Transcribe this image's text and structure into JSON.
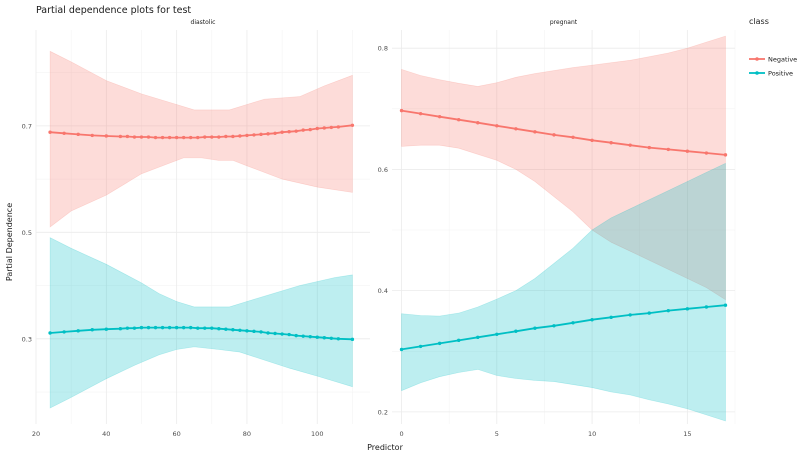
{
  "chart_data": {
    "type": "line",
    "title": "Partial dependence plots for test",
    "xlabel": "Predictor",
    "ylabel": "Partial Dependence",
    "legend": {
      "title": "class",
      "position": "right",
      "entries": [
        {
          "name": "Negative",
          "color": "#F8766D"
        },
        {
          "name": "Positive",
          "color": "#00BFC4"
        }
      ]
    },
    "panels": [
      {
        "strip": "diastolic",
        "xlim": [
          20,
          115
        ],
        "ylim": [
          0.14,
          0.88
        ],
        "xticks": [
          20,
          40,
          60,
          80,
          100
        ],
        "yticks": [
          0.3,
          0.5,
          0.7
        ],
        "ytick_labels": [
          "0.3",
          "0.5",
          "0.7"
        ],
        "series": [
          {
            "name": "Negative",
            "color": "#F8766D",
            "x": [
              24,
              28,
              32,
              36,
              40,
              44,
              46,
              48,
              50,
              52,
              54,
              56,
              58,
              60,
              62,
              64,
              66,
              68,
              70,
              72,
              74,
              76,
              78,
              80,
              82,
              84,
              86,
              88,
              90,
              92,
              94,
              96,
              98,
              100,
              102,
              104,
              106,
              110
            ],
            "y": [
              0.688,
              0.686,
              0.684,
              0.682,
              0.681,
              0.68,
              0.68,
              0.679,
              0.679,
              0.679,
              0.678,
              0.678,
              0.678,
              0.678,
              0.678,
              0.678,
              0.678,
              0.679,
              0.679,
              0.679,
              0.68,
              0.68,
              0.681,
              0.682,
              0.683,
              0.684,
              0.685,
              0.686,
              0.688,
              0.689,
              0.69,
              0.692,
              0.693,
              0.695,
              0.696,
              0.697,
              0.698,
              0.701
            ],
            "upper": [
              [
                24,
                0.84
              ],
              [
                30,
                0.82
              ],
              [
                40,
                0.785
              ],
              [
                50,
                0.76
              ],
              [
                60,
                0.74
              ],
              [
                65,
                0.73
              ],
              [
                75,
                0.73
              ],
              [
                80,
                0.74
              ],
              [
                85,
                0.75
              ],
              [
                95,
                0.755
              ],
              [
                102,
                0.775
              ],
              [
                110,
                0.795
              ]
            ],
            "lower": [
              [
                24,
                0.51
              ],
              [
                30,
                0.54
              ],
              [
                40,
                0.57
              ],
              [
                50,
                0.61
              ],
              [
                58,
                0.63
              ],
              [
                62,
                0.64
              ],
              [
                67,
                0.64
              ],
              [
                72,
                0.635
              ],
              [
                76,
                0.635
              ],
              [
                80,
                0.625
              ],
              [
                84,
                0.615
              ],
              [
                90,
                0.6
              ],
              [
                100,
                0.585
              ],
              [
                110,
                0.575
              ]
            ]
          },
          {
            "name": "Positive",
            "color": "#00BFC4",
            "x": [
              24,
              28,
              32,
              36,
              40,
              44,
              46,
              48,
              50,
              52,
              54,
              56,
              58,
              60,
              62,
              64,
              66,
              68,
              70,
              72,
              74,
              76,
              78,
              80,
              82,
              84,
              86,
              88,
              90,
              92,
              94,
              96,
              98,
              100,
              102,
              104,
              106,
              110
            ],
            "y": [
              0.311,
              0.313,
              0.315,
              0.317,
              0.318,
              0.319,
              0.32,
              0.32,
              0.321,
              0.321,
              0.321,
              0.321,
              0.321,
              0.321,
              0.321,
              0.321,
              0.32,
              0.32,
              0.32,
              0.319,
              0.318,
              0.317,
              0.316,
              0.315,
              0.314,
              0.313,
              0.311,
              0.31,
              0.309,
              0.308,
              0.306,
              0.305,
              0.304,
              0.303,
              0.302,
              0.301,
              0.3,
              0.299
            ],
            "upper": [
              [
                24,
                0.49
              ],
              [
                30,
                0.47
              ],
              [
                40,
                0.44
              ],
              [
                50,
                0.405
              ],
              [
                55,
                0.385
              ],
              [
                60,
                0.37
              ],
              [
                65,
                0.36
              ],
              [
                70,
                0.36
              ],
              [
                75,
                0.36
              ],
              [
                80,
                0.37
              ],
              [
                85,
                0.38
              ],
              [
                95,
                0.4
              ],
              [
                105,
                0.415
              ],
              [
                110,
                0.42
              ]
            ],
            "lower": [
              [
                24,
                0.17
              ],
              [
                30,
                0.19
              ],
              [
                40,
                0.225
              ],
              [
                48,
                0.25
              ],
              [
                55,
                0.27
              ],
              [
                60,
                0.28
              ],
              [
                65,
                0.285
              ],
              [
                72,
                0.28
              ],
              [
                78,
                0.275
              ],
              [
                85,
                0.26
              ],
              [
                92,
                0.245
              ],
              [
                100,
                0.23
              ],
              [
                110,
                0.21
              ]
            ]
          }
        ]
      },
      {
        "strip": "pregnant",
        "xlim": [
          -0.5,
          17.5
        ],
        "ylim": [
          0.18,
          0.83
        ],
        "xticks": [
          0,
          5,
          10,
          15
        ],
        "yticks": [
          0.2,
          0.4,
          0.6,
          0.8
        ],
        "ytick_labels": [
          "0.2",
          "0.4",
          "0.6",
          "0.8"
        ],
        "series": [
          {
            "name": "Negative",
            "color": "#F8766D",
            "x": [
              0,
              1,
              2,
              3,
              4,
              5,
              6,
              7,
              8,
              9,
              10,
              11,
              12,
              13,
              14,
              15,
              16,
              17
            ],
            "y": [
              0.697,
              0.692,
              0.687,
              0.682,
              0.677,
              0.672,
              0.667,
              0.662,
              0.657,
              0.653,
              0.648,
              0.644,
              0.64,
              0.636,
              0.633,
              0.63,
              0.627,
              0.624
            ],
            "upper": [
              [
                0,
                0.765
              ],
              [
                1,
                0.755
              ],
              [
                2,
                0.748
              ],
              [
                3,
                0.742
              ],
              [
                4,
                0.737
              ],
              [
                5,
                0.743
              ],
              [
                6,
                0.752
              ],
              [
                7,
                0.758
              ],
              [
                8,
                0.763
              ],
              [
                9,
                0.768
              ],
              [
                10,
                0.772
              ],
              [
                11,
                0.776
              ],
              [
                12,
                0.78
              ],
              [
                13,
                0.786
              ],
              [
                14,
                0.792
              ],
              [
                15,
                0.8
              ],
              [
                16,
                0.81
              ],
              [
                17,
                0.82
              ]
            ],
            "lower": [
              [
                0,
                0.638
              ],
              [
                1,
                0.64
              ],
              [
                2,
                0.64
              ],
              [
                3,
                0.635
              ],
              [
                4,
                0.625
              ],
              [
                5,
                0.615
              ],
              [
                6,
                0.6
              ],
              [
                7,
                0.58
              ],
              [
                8,
                0.555
              ],
              [
                9,
                0.53
              ],
              [
                10,
                0.5
              ],
              [
                11,
                0.48
              ],
              [
                12,
                0.465
              ],
              [
                13,
                0.45
              ],
              [
                14,
                0.435
              ],
              [
                15,
                0.42
              ],
              [
                16,
                0.405
              ],
              [
                17,
                0.385
              ]
            ]
          },
          {
            "name": "Positive",
            "color": "#00BFC4",
            "x": [
              0,
              1,
              2,
              3,
              4,
              5,
              6,
              7,
              8,
              9,
              10,
              11,
              12,
              13,
              14,
              15,
              16,
              17
            ],
            "y": [
              0.303,
              0.308,
              0.313,
              0.318,
              0.323,
              0.328,
              0.333,
              0.338,
              0.342,
              0.347,
              0.352,
              0.356,
              0.36,
              0.363,
              0.367,
              0.37,
              0.373,
              0.376
            ],
            "upper": [
              [
                0,
                0.362
              ],
              [
                1,
                0.359
              ],
              [
                2,
                0.358
              ],
              [
                3,
                0.363
              ],
              [
                4,
                0.373
              ],
              [
                5,
                0.386
              ],
              [
                6,
                0.4
              ],
              [
                7,
                0.42
              ],
              [
                8,
                0.445
              ],
              [
                9,
                0.47
              ],
              [
                10,
                0.5
              ],
              [
                11,
                0.52
              ],
              [
                12,
                0.535
              ],
              [
                13,
                0.55
              ],
              [
                14,
                0.565
              ],
              [
                15,
                0.58
              ],
              [
                16,
                0.595
              ],
              [
                17,
                0.61
              ]
            ],
            "lower": [
              [
                0,
                0.235
              ],
              [
                1,
                0.248
              ],
              [
                2,
                0.258
              ],
              [
                3,
                0.265
              ],
              [
                4,
                0.27
              ],
              [
                5,
                0.26
              ],
              [
                6,
                0.255
              ],
              [
                7,
                0.252
              ],
              [
                8,
                0.25
              ],
              [
                9,
                0.245
              ],
              [
                10,
                0.24
              ],
              [
                11,
                0.233
              ],
              [
                12,
                0.228
              ],
              [
                13,
                0.22
              ],
              [
                14,
                0.213
              ],
              [
                15,
                0.205
              ],
              [
                16,
                0.195
              ],
              [
                17,
                0.185
              ]
            ]
          }
        ]
      }
    ]
  }
}
